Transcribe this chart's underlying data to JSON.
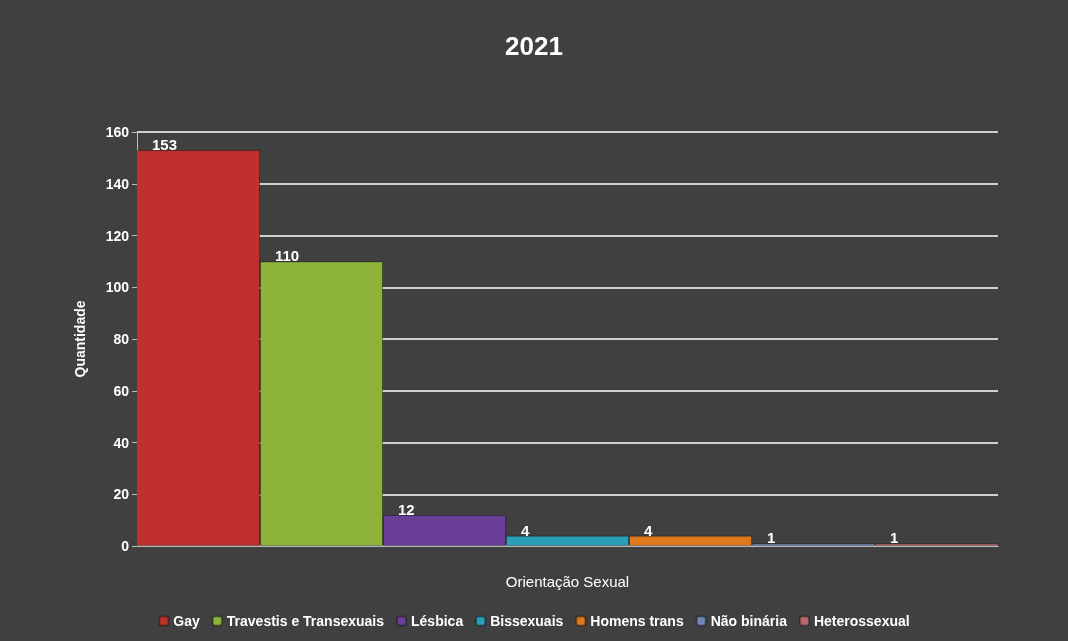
{
  "chart_data": {
    "type": "bar",
    "title": "2021",
    "xlabel": "Orientação Sexual",
    "ylabel": "Quantidade",
    "categories": [
      null
    ],
    "series": [
      {
        "name": "Gay",
        "color": "#c0302e",
        "values": [
          153
        ]
      },
      {
        "name": "Travestis e Transexuais",
        "color": "#8db33a",
        "values": [
          110
        ]
      },
      {
        "name": "Lésbica",
        "color": "#6a3f9a",
        "values": [
          12
        ]
      },
      {
        "name": "Bissexuais",
        "color": "#2c9fb8",
        "values": [
          4
        ]
      },
      {
        "name": "Homens trans",
        "color": "#e0781e",
        "values": [
          4
        ]
      },
      {
        "name": "Não binária",
        "color": "#6f86b8",
        "values": [
          1
        ]
      },
      {
        "name": "Heterossexual",
        "color": "#b86a6a",
        "values": [
          1
        ]
      }
    ],
    "ylim": [
      0,
      160
    ],
    "yticks": [
      0,
      20,
      40,
      60,
      80,
      100,
      120,
      140,
      160
    ],
    "grid": "y",
    "legend": "bottom",
    "data_labels": true
  }
}
